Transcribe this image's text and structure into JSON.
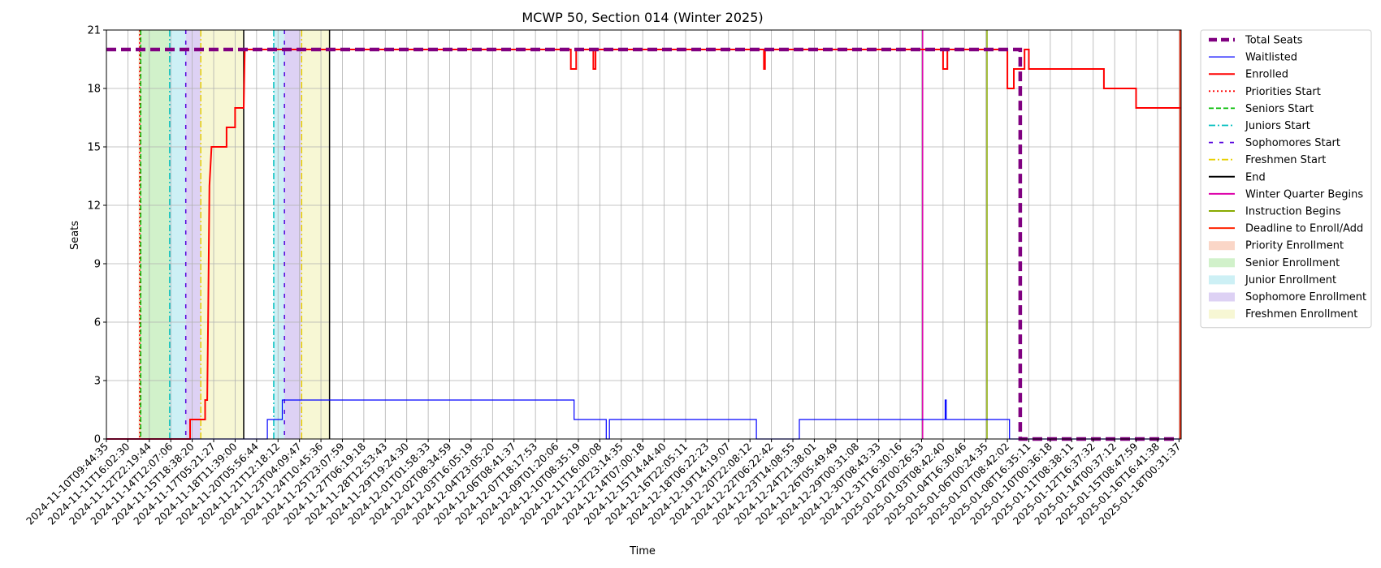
{
  "chart_data": {
    "type": "line",
    "title": "MCWP 50, Section 014 (Winter 2025)",
    "xlabel": "Time",
    "ylabel": "Seats",
    "ylim": [
      0,
      21
    ],
    "yticks": [
      0,
      3,
      6,
      9,
      12,
      15,
      18,
      21
    ],
    "grid": true,
    "legend_position": "outside-right",
    "xticks": [
      "2024-11-10T09:44:35",
      "2024-11-11T16:02:30",
      "2024-11-12T22:19:44",
      "2024-11-14T12:07:06",
      "2024-11-15T18:38:20",
      "2024-11-17T05:21:27",
      "2024-11-18T11:39:00",
      "2024-11-20T05:56:44",
      "2024-11-21T12:18:12",
      "2024-11-23T04:09:47",
      "2024-11-24T10:45:36",
      "2024-11-25T23:07:59",
      "2024-11-27T06:19:18",
      "2024-11-28T12:53:43",
      "2024-11-29T19:24:30",
      "2024-12-01T01:58:33",
      "2024-12-02T08:34:59",
      "2024-12-03T16:05:19",
      "2024-12-04T23:05:20",
      "2024-12-06T08:41:37",
      "2024-12-07T18:17:53",
      "2024-12-09T01:20:06",
      "2024-12-10T08:35:19",
      "2024-12-11T16:00:08",
      "2024-12-12T23:14:35",
      "2024-12-14T07:00:18",
      "2024-12-15T14:44:40",
      "2024-12-16T22:05:11",
      "2024-12-18T06:22:23",
      "2024-12-19T14:19:07",
      "2024-12-20T22:08:12",
      "2024-12-22T06:22:42",
      "2024-12-23T14:08:55",
      "2024-12-24T21:38:01",
      "2024-12-26T05:49:49",
      "2024-12-29T00:31:08",
      "2024-12-30T08:43:33",
      "2024-12-31T16:30:16",
      "2025-01-02T00:26:53",
      "2025-01-03T08:42:40",
      "2025-01-04T16:30:46",
      "2025-01-06T00:24:35",
      "2025-01-07T08:42:02",
      "2025-01-08T16:35:11",
      "2025-01-10T00:36:18",
      "2025-01-11T08:38:11",
      "2025-01-12T16:37:32",
      "2025-01-14T00:37:12",
      "2025-01-15T08:47:59",
      "2025-01-16T16:41:38",
      "2025-01-18T00:31:37"
    ],
    "x_range": [
      0,
      50.1
    ],
    "series": [
      {
        "name": "Total Seats",
        "color": "#800080",
        "style": "dashed-thick",
        "points": [
          [
            0,
            20
          ],
          [
            42.6,
            20
          ],
          [
            42.6,
            0
          ],
          [
            50,
            0
          ]
        ]
      },
      {
        "name": "Waitlisted",
        "color": "#0000ff",
        "style": "solid-thin",
        "points": [
          [
            0,
            0
          ],
          [
            7.5,
            0
          ],
          [
            7.5,
            1
          ],
          [
            8.2,
            1
          ],
          [
            8.2,
            2
          ],
          [
            21.8,
            2
          ],
          [
            21.8,
            1
          ],
          [
            23.3,
            1
          ],
          [
            23.3,
            0
          ],
          [
            23.45,
            0
          ],
          [
            23.45,
            1
          ],
          [
            30.3,
            1
          ],
          [
            30.3,
            0
          ],
          [
            32.3,
            0
          ],
          [
            32.3,
            1
          ],
          [
            39.1,
            1
          ],
          [
            39.1,
            2
          ],
          [
            39.15,
            2
          ],
          [
            39.15,
            1
          ],
          [
            42.1,
            1
          ],
          [
            42.1,
            0
          ],
          [
            50,
            0
          ]
        ]
      },
      {
        "name": "Enrolled",
        "color": "#ff0000",
        "style": "solid",
        "points": [
          [
            0,
            0
          ],
          [
            3.9,
            0
          ],
          [
            3.9,
            1
          ],
          [
            4.6,
            1
          ],
          [
            4.6,
            2
          ],
          [
            4.7,
            2
          ],
          [
            4.75,
            7
          ],
          [
            4.8,
            13
          ],
          [
            4.85,
            14
          ],
          [
            4.9,
            15
          ],
          [
            5.6,
            15
          ],
          [
            5.6,
            16
          ],
          [
            6.0,
            16
          ],
          [
            6.0,
            17
          ],
          [
            6.4,
            17
          ],
          [
            6.45,
            20
          ],
          [
            21.65,
            20
          ],
          [
            21.65,
            19
          ],
          [
            21.9,
            19
          ],
          [
            21.9,
            20
          ],
          [
            22.7,
            20
          ],
          [
            22.7,
            19
          ],
          [
            22.8,
            19
          ],
          [
            22.8,
            20
          ],
          [
            30.65,
            20
          ],
          [
            30.65,
            19
          ],
          [
            30.7,
            19
          ],
          [
            30.7,
            20
          ],
          [
            39.0,
            20
          ],
          [
            39.0,
            19
          ],
          [
            39.2,
            19
          ],
          [
            39.2,
            20
          ],
          [
            42.0,
            20
          ],
          [
            42.0,
            18
          ],
          [
            42.3,
            18
          ],
          [
            42.3,
            19
          ],
          [
            42.8,
            19
          ],
          [
            42.8,
            20
          ],
          [
            43.0,
            20
          ],
          [
            43.0,
            19
          ],
          [
            46.5,
            19
          ],
          [
            46.5,
            18
          ],
          [
            48.0,
            18
          ],
          [
            48.0,
            17
          ],
          [
            50.1,
            17
          ]
        ]
      }
    ],
    "phases": [
      {
        "name": "Priority Enrollment",
        "color": "#f4a582",
        "start": 1.5,
        "end": 1.6
      },
      {
        "name": "Senior Enrollment",
        "color": "#98e08a",
        "start": 1.6,
        "end": 2.95
      },
      {
        "name": "Junior Enrollment",
        "color": "#90dde8",
        "start": 2.95,
        "end": 3.7
      },
      {
        "name": "Sophomore Enrollment",
        "color": "#b49ae6",
        "start": 3.7,
        "end": 4.4
      },
      {
        "name": "Freshmen Enrollment",
        "color": "#eeeea0",
        "start": 4.4,
        "end": 6.4
      },
      {
        "name": "Junior Enrollment",
        "color": "#90dde8",
        "start": 7.8,
        "end": 8.3
      },
      {
        "name": "Sophomore Enrollment",
        "color": "#b49ae6",
        "start": 8.3,
        "end": 9.1
      },
      {
        "name": "Freshmen Enrollment",
        "color": "#eeeea0",
        "start": 9.1,
        "end": 10.4
      }
    ],
    "vlines": [
      {
        "name": "Priorities Start",
        "color": "#ff0000",
        "style": "dotted",
        "x": 1.55
      },
      {
        "name": "Seniors Start",
        "color": "#00bb00",
        "style": "dashed",
        "x": 1.6
      },
      {
        "name": "Juniors Start",
        "color": "#00bfbf",
        "style": "dashdot",
        "x": 2.95
      },
      {
        "name": "Sophomores Start",
        "color": "#5500dd",
        "style": "loosedash",
        "x": 3.7
      },
      {
        "name": "Freshmen Start",
        "color": "#e8d000",
        "style": "dashdot",
        "x": 4.4
      },
      {
        "name": "End",
        "color": "#000000",
        "style": "solid",
        "x": 6.4
      },
      {
        "name": "Juniors Start",
        "color": "#00bfbf",
        "style": "dashdot",
        "x": 7.8
      },
      {
        "name": "Sophomores Start",
        "color": "#5500dd",
        "style": "loosedash",
        "x": 8.3
      },
      {
        "name": "Freshmen Start",
        "color": "#e8d000",
        "style": "dashdot",
        "x": 9.1
      },
      {
        "name": "End",
        "color": "#000000",
        "style": "solid",
        "x": 10.4
      },
      {
        "name": "Winter Quarter Begins",
        "color": "#dd00aa",
        "style": "solid",
        "x": 38.05
      },
      {
        "name": "Instruction Begins",
        "color": "#88aa00",
        "style": "solid",
        "x": 41.05
      },
      {
        "name": "Deadline to Enroll/Add",
        "color": "#ff2200",
        "style": "solid",
        "x": 50.05
      }
    ],
    "legend": [
      {
        "label": "Total Seats",
        "kind": "line",
        "color": "#800080",
        "style": "dashed-thick"
      },
      {
        "label": "Waitlisted",
        "kind": "line",
        "color": "#0000ff",
        "style": "solid-thin"
      },
      {
        "label": "Enrolled",
        "kind": "line",
        "color": "#ff0000",
        "style": "solid"
      },
      {
        "label": "Priorities Start",
        "kind": "line",
        "color": "#ff0000",
        "style": "dotted"
      },
      {
        "label": "Seniors Start",
        "kind": "line",
        "color": "#00bb00",
        "style": "dashed"
      },
      {
        "label": "Juniors Start",
        "kind": "line",
        "color": "#00bfbf",
        "style": "dashdot"
      },
      {
        "label": "Sophomores Start",
        "kind": "line",
        "color": "#5500dd",
        "style": "loosedash"
      },
      {
        "label": "Freshmen Start",
        "kind": "line",
        "color": "#e8d000",
        "style": "dashdot"
      },
      {
        "label": "End",
        "kind": "line",
        "color": "#000000",
        "style": "solid"
      },
      {
        "label": "Winter Quarter Begins",
        "kind": "line",
        "color": "#dd00aa",
        "style": "solid"
      },
      {
        "label": "Instruction Begins",
        "kind": "line",
        "color": "#88aa00",
        "style": "solid"
      },
      {
        "label": "Deadline to Enroll/Add",
        "kind": "line",
        "color": "#ff2200",
        "style": "solid"
      },
      {
        "label": "Priority Enrollment",
        "kind": "patch",
        "color": "#f4a582"
      },
      {
        "label": "Senior Enrollment",
        "kind": "patch",
        "color": "#98e08a"
      },
      {
        "label": "Junior Enrollment",
        "kind": "patch",
        "color": "#90dde8"
      },
      {
        "label": "Sophomore Enrollment",
        "kind": "patch",
        "color": "#b49ae6"
      },
      {
        "label": "Freshmen Enrollment",
        "kind": "patch",
        "color": "#eeeea0"
      }
    ]
  }
}
